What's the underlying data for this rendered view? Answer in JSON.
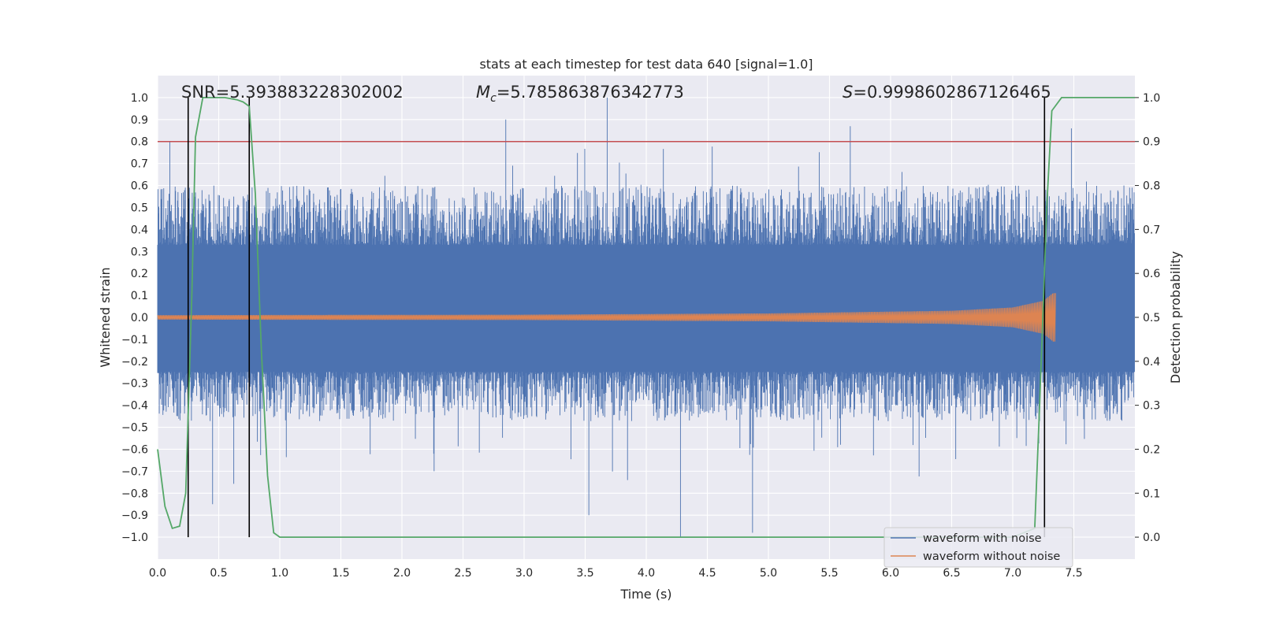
{
  "chart_data": {
    "type": "line",
    "title": "stats at each timestep for test data 640 [signal=1.0]",
    "xlabel": "Time (s)",
    "ylabel": "Whitened strain",
    "y2label": "Detection probability",
    "xlim": [
      0.0,
      8.0
    ],
    "ylim": [
      -1.1,
      1.1
    ],
    "y2lim": [
      -0.05,
      1.05
    ],
    "xticks": [
      "0.0",
      "0.5",
      "1.0",
      "1.5",
      "2.0",
      "2.5",
      "3.0",
      "3.5",
      "4.0",
      "4.5",
      "5.0",
      "5.5",
      "6.0",
      "6.5",
      "7.0",
      "7.5"
    ],
    "yticks": [
      "−1.0",
      "−0.9",
      "−0.8",
      "−0.7",
      "−0.6",
      "−0.5",
      "−0.4",
      "−0.3",
      "−0.2",
      "−0.1",
      "0.0",
      "0.1",
      "0.2",
      "0.3",
      "0.4",
      "0.5",
      "0.6",
      "0.7",
      "0.8",
      "0.9",
      "1.0"
    ],
    "y2ticks": [
      "0.0",
      "0.1",
      "0.2",
      "0.3",
      "0.4",
      "0.5",
      "0.6",
      "0.7",
      "0.8",
      "0.9",
      "1.0"
    ],
    "grid": true,
    "legend_position": "bottom-right",
    "series": [
      {
        "name": "waveform with noise",
        "axis": "left",
        "color": "#4c72b0",
        "kind": "noise band",
        "typical_range": [
          -0.45,
          0.6
        ],
        "peaks": [
          {
            "x": 3.68,
            "y": 1.0
          },
          {
            "x": 4.28,
            "y": -1.0
          },
          {
            "x": 4.87,
            "y": -0.98
          },
          {
            "x": 0.1,
            "y": 0.8
          },
          {
            "x": 2.85,
            "y": 0.9
          },
          {
            "x": 5.67,
            "y": 0.87
          },
          {
            "x": 7.48,
            "y": 0.86
          },
          {
            "x": 3.53,
            "y": -0.9
          },
          {
            "x": 0.45,
            "y": -0.85
          }
        ]
      },
      {
        "name": "waveform without noise",
        "axis": "left",
        "color": "#dd8452",
        "kind": "chirp",
        "start": 0.0,
        "end": 7.35,
        "amplitude": [
          {
            "x": 0.0,
            "y": 0.01
          },
          {
            "x": 3.0,
            "y": 0.012
          },
          {
            "x": 5.0,
            "y": 0.018
          },
          {
            "x": 6.5,
            "y": 0.03
          },
          {
            "x": 7.0,
            "y": 0.045
          },
          {
            "x": 7.25,
            "y": 0.075
          },
          {
            "x": 7.33,
            "y": 0.11
          }
        ]
      },
      {
        "name": "detection probability",
        "axis": "right",
        "color": "#55a868",
        "x": [
          0.0,
          0.06,
          0.12,
          0.18,
          0.23,
          0.28,
          0.31,
          0.37,
          0.45,
          0.55,
          0.65,
          0.7,
          0.75,
          0.8,
          0.85,
          0.9,
          0.95,
          1.0,
          7.0,
          7.18,
          7.22,
          7.28,
          7.32,
          7.4,
          7.5,
          8.0
        ],
        "y": [
          0.2,
          0.07,
          0.02,
          0.025,
          0.1,
          0.55,
          0.91,
          1.0,
          1.0,
          1.0,
          0.995,
          0.99,
          0.98,
          0.78,
          0.42,
          0.14,
          0.01,
          0.0,
          0.0,
          0.02,
          0.3,
          0.76,
          0.97,
          1.0,
          1.0,
          1.0
        ]
      }
    ],
    "hlines": [
      {
        "y": 0.8,
        "color": "#c44e52"
      }
    ],
    "vlines": [
      {
        "x": 0.25
      },
      {
        "x": 0.75
      },
      {
        "x": 7.26
      }
    ],
    "annotations": {
      "snr": "SNR=5.393883228302002",
      "mc_symbol": "M",
      "mc_sub": "c",
      "mc_value": "=5.785863876342773",
      "s_symbol": "S",
      "s_value": "=0.9998602867126465"
    }
  },
  "colors": {
    "plot_bg": "#eaeaf2",
    "grid": "#ffffff",
    "text": "#262626"
  }
}
